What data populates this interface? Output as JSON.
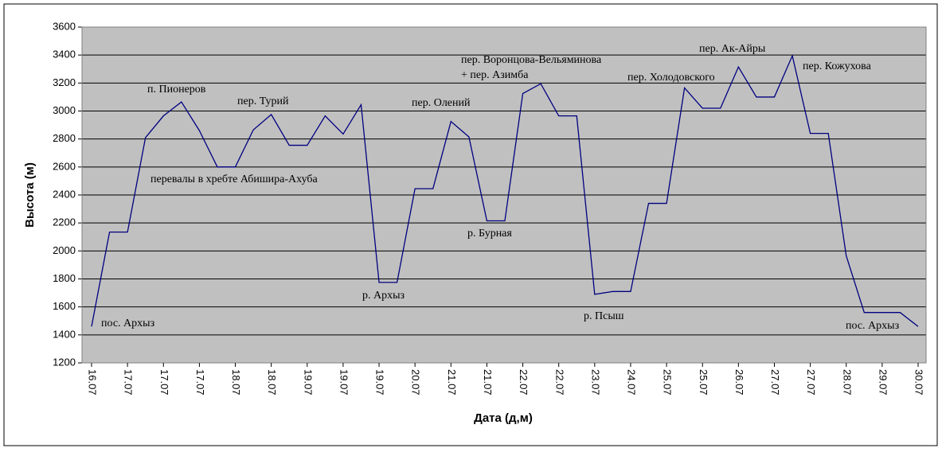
{
  "chart_data": {
    "type": "line",
    "x_label": "Дата (д,м)",
    "y_label": "Высота (м)",
    "categories": [
      "16.07",
      null,
      "17.07",
      null,
      "17.07",
      null,
      "17.07",
      null,
      "18.07",
      null,
      "18.07",
      null,
      "19.07",
      null,
      "19.07",
      null,
      "19.07",
      null,
      "20.07",
      null,
      "21.07",
      null,
      "21.07",
      null,
      "22.07",
      null,
      "22.07",
      null,
      "23.07",
      null,
      "24.07",
      null,
      "25.07",
      null,
      "25.07",
      null,
      "26.07",
      null,
      "27.07",
      null,
      "27.07",
      null,
      "28.07",
      null,
      "29.07",
      null,
      "30.07"
    ],
    "series": [
      {
        "name": "Высота",
        "color": "#000080",
        "values": [
          1460,
          2135,
          2135,
          2810,
          2965,
          3065,
          2860,
          2600,
          2600,
          2865,
          2975,
          2755,
          2755,
          2965,
          2835,
          3045,
          1775,
          1775,
          2445,
          2445,
          2925,
          2815,
          2215,
          2215,
          3125,
          3195,
          2965,
          2965,
          1690,
          1710,
          1710,
          2340,
          2340,
          3165,
          3020,
          3020,
          3315,
          3100,
          3100,
          3395,
          2840,
          2840,
          1965,
          1560,
          1560,
          1560,
          1460
        ]
      }
    ],
    "ylim": [
      1200,
      3600
    ],
    "yticks": [
      1200,
      1400,
      1600,
      1800,
      2000,
      2200,
      2400,
      2600,
      2800,
      3000,
      3200,
      3400,
      3600
    ],
    "grid": true,
    "plot_background": "#c0c0c0",
    "annotations": [
      "пос. Архыз",
      "п. Пионеров",
      "пер. Турий",
      "перевалы в хребте Абишира-Ахуба",
      "р. Архыз",
      "пер. Воронцова-Вельяминова",
      "+ пер. Азимба",
      "пер. Олений",
      "р. Бурная",
      "р. Псыш",
      "пер. Холодовского",
      "пер. Ак-Айры",
      "пер. Кожухова",
      "пос. Архыз"
    ]
  }
}
